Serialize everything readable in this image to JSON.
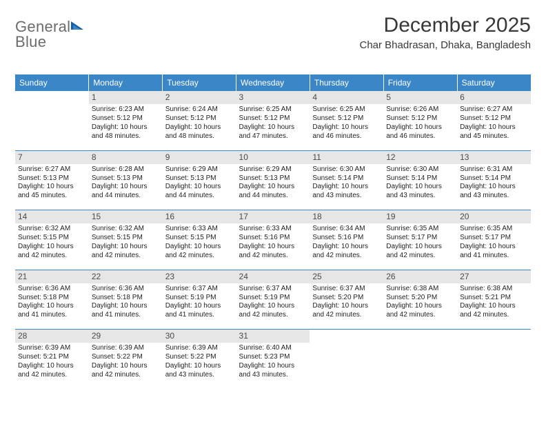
{
  "brand": {
    "word1": "General",
    "word2": "Blue"
  },
  "title": "December 2025",
  "location": "Char Bhadrasan, Dhaka, Bangladesh",
  "colors": {
    "accent": "#3b86c6",
    "header_text": "#ffffff",
    "daynum_bg": "#e6e6e6",
    "daynum_fg": "#4a4a4a",
    "body_text": "#222222",
    "logo_gray": "#6b6b6b"
  },
  "weekdays": [
    "Sunday",
    "Monday",
    "Tuesday",
    "Wednesday",
    "Thursday",
    "Friday",
    "Saturday"
  ],
  "start_offset": 1,
  "days": [
    {
      "n": 1,
      "sunrise": "6:23 AM",
      "sunset": "5:12 PM",
      "dh": 10,
      "dm": 48
    },
    {
      "n": 2,
      "sunrise": "6:24 AM",
      "sunset": "5:12 PM",
      "dh": 10,
      "dm": 48
    },
    {
      "n": 3,
      "sunrise": "6:25 AM",
      "sunset": "5:12 PM",
      "dh": 10,
      "dm": 47
    },
    {
      "n": 4,
      "sunrise": "6:25 AM",
      "sunset": "5:12 PM",
      "dh": 10,
      "dm": 46
    },
    {
      "n": 5,
      "sunrise": "6:26 AM",
      "sunset": "5:12 PM",
      "dh": 10,
      "dm": 46
    },
    {
      "n": 6,
      "sunrise": "6:27 AM",
      "sunset": "5:12 PM",
      "dh": 10,
      "dm": 45
    },
    {
      "n": 7,
      "sunrise": "6:27 AM",
      "sunset": "5:13 PM",
      "dh": 10,
      "dm": 45
    },
    {
      "n": 8,
      "sunrise": "6:28 AM",
      "sunset": "5:13 PM",
      "dh": 10,
      "dm": 44
    },
    {
      "n": 9,
      "sunrise": "6:29 AM",
      "sunset": "5:13 PM",
      "dh": 10,
      "dm": 44
    },
    {
      "n": 10,
      "sunrise": "6:29 AM",
      "sunset": "5:13 PM",
      "dh": 10,
      "dm": 44
    },
    {
      "n": 11,
      "sunrise": "6:30 AM",
      "sunset": "5:14 PM",
      "dh": 10,
      "dm": 43
    },
    {
      "n": 12,
      "sunrise": "6:30 AM",
      "sunset": "5:14 PM",
      "dh": 10,
      "dm": 43
    },
    {
      "n": 13,
      "sunrise": "6:31 AM",
      "sunset": "5:14 PM",
      "dh": 10,
      "dm": 43
    },
    {
      "n": 14,
      "sunrise": "6:32 AM",
      "sunset": "5:15 PM",
      "dh": 10,
      "dm": 42
    },
    {
      "n": 15,
      "sunrise": "6:32 AM",
      "sunset": "5:15 PM",
      "dh": 10,
      "dm": 42
    },
    {
      "n": 16,
      "sunrise": "6:33 AM",
      "sunset": "5:15 PM",
      "dh": 10,
      "dm": 42
    },
    {
      "n": 17,
      "sunrise": "6:33 AM",
      "sunset": "5:16 PM",
      "dh": 10,
      "dm": 42
    },
    {
      "n": 18,
      "sunrise": "6:34 AM",
      "sunset": "5:16 PM",
      "dh": 10,
      "dm": 42
    },
    {
      "n": 19,
      "sunrise": "6:35 AM",
      "sunset": "5:17 PM",
      "dh": 10,
      "dm": 42
    },
    {
      "n": 20,
      "sunrise": "6:35 AM",
      "sunset": "5:17 PM",
      "dh": 10,
      "dm": 41
    },
    {
      "n": 21,
      "sunrise": "6:36 AM",
      "sunset": "5:18 PM",
      "dh": 10,
      "dm": 41
    },
    {
      "n": 22,
      "sunrise": "6:36 AM",
      "sunset": "5:18 PM",
      "dh": 10,
      "dm": 41
    },
    {
      "n": 23,
      "sunrise": "6:37 AM",
      "sunset": "5:19 PM",
      "dh": 10,
      "dm": 41
    },
    {
      "n": 24,
      "sunrise": "6:37 AM",
      "sunset": "5:19 PM",
      "dh": 10,
      "dm": 42
    },
    {
      "n": 25,
      "sunrise": "6:37 AM",
      "sunset": "5:20 PM",
      "dh": 10,
      "dm": 42
    },
    {
      "n": 26,
      "sunrise": "6:38 AM",
      "sunset": "5:20 PM",
      "dh": 10,
      "dm": 42
    },
    {
      "n": 27,
      "sunrise": "6:38 AM",
      "sunset": "5:21 PM",
      "dh": 10,
      "dm": 42
    },
    {
      "n": 28,
      "sunrise": "6:39 AM",
      "sunset": "5:21 PM",
      "dh": 10,
      "dm": 42
    },
    {
      "n": 29,
      "sunrise": "6:39 AM",
      "sunset": "5:22 PM",
      "dh": 10,
      "dm": 42
    },
    {
      "n": 30,
      "sunrise": "6:39 AM",
      "sunset": "5:22 PM",
      "dh": 10,
      "dm": 43
    },
    {
      "n": 31,
      "sunrise": "6:40 AM",
      "sunset": "5:23 PM",
      "dh": 10,
      "dm": 43
    }
  ],
  "labels": {
    "sunrise_prefix": "Sunrise: ",
    "sunset_prefix": "Sunset: ",
    "daylight_prefix": "Daylight: ",
    "hours_word": " hours",
    "and_word": "and ",
    "minutes_suffix": " minutes."
  }
}
